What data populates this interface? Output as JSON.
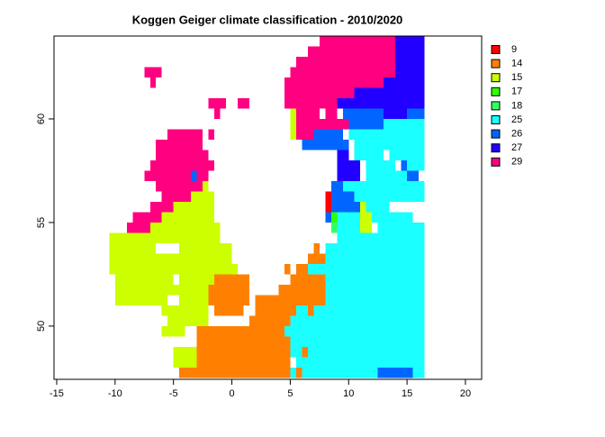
{
  "chart_data": {
    "type": "raster",
    "title": "Koggen Geiger climate classification - 2010/2020",
    "xlim": [
      -15.23,
      21.39
    ],
    "ylim": [
      47.43,
      64.0
    ],
    "xticks": [
      -15,
      -10,
      -5,
      0,
      5,
      10,
      15,
      20
    ],
    "yticks": [
      50,
      55,
      60
    ],
    "cell_size": 0.5,
    "legend_classes": [
      9,
      14,
      15,
      17,
      18,
      25,
      26,
      27,
      29
    ],
    "legend_colors": [
      "#ff0000",
      "#ff8000",
      "#ccff00",
      "#33ff00",
      "#33ff66",
      "#1affff",
      "#0066ff",
      "#2200ff",
      "#ff0080"
    ],
    "cells": [
      [
        63.5,
        7.5,
        14,
        29
      ],
      [
        63.5,
        14,
        16.5,
        27
      ],
      [
        63,
        6.5,
        14,
        29
      ],
      [
        63,
        14,
        16.5,
        27
      ],
      [
        62.5,
        5.5,
        14,
        29
      ],
      [
        62.5,
        14,
        16.5,
        27
      ],
      [
        62,
        -7.5,
        -6,
        29
      ],
      [
        62,
        5,
        14,
        29
      ],
      [
        62,
        14,
        16.5,
        27
      ],
      [
        61.5,
        -7,
        -6.5,
        29
      ],
      [
        61.5,
        4.5,
        13,
        29
      ],
      [
        61.5,
        13,
        16.5,
        27
      ],
      [
        61,
        4.5,
        10.5,
        29
      ],
      [
        61,
        10.5,
        16.5,
        27
      ],
      [
        60.5,
        -2,
        -0.5,
        29
      ],
      [
        60.5,
        0.5,
        1.5,
        29
      ],
      [
        60.5,
        4.5,
        9,
        29
      ],
      [
        60.5,
        9,
        16.5,
        27
      ],
      [
        60,
        -1.5,
        -1,
        29
      ],
      [
        60,
        5,
        5.5,
        15
      ],
      [
        60,
        5.5,
        7.5,
        29
      ],
      [
        60,
        8,
        9,
        29
      ],
      [
        60,
        9.5,
        13,
        26
      ],
      [
        60,
        13,
        15,
        27
      ],
      [
        60,
        15,
        16.5,
        26
      ],
      [
        59.5,
        5,
        5.5,
        15
      ],
      [
        59.5,
        5.5,
        10,
        29
      ],
      [
        59.5,
        10,
        13,
        26
      ],
      [
        59.5,
        13,
        16.5,
        25
      ],
      [
        59,
        -5.5,
        -2.5,
        29
      ],
      [
        59,
        -2,
        -1.5,
        29
      ],
      [
        59,
        5,
        5.5,
        15
      ],
      [
        59,
        5.5,
        7,
        29
      ],
      [
        59,
        7,
        9.5,
        26
      ],
      [
        59,
        10,
        16.5,
        25
      ],
      [
        58.5,
        -6.5,
        -2.5,
        29
      ],
      [
        58.5,
        6,
        10,
        26
      ],
      [
        58.5,
        10.5,
        16.5,
        25
      ],
      [
        58,
        -6.5,
        -2,
        29
      ],
      [
        58,
        9,
        10,
        27
      ],
      [
        58,
        10.5,
        13,
        25
      ],
      [
        58,
        13.5,
        16.5,
        25
      ],
      [
        57.5,
        -7,
        -1.5,
        29
      ],
      [
        57.5,
        9,
        11,
        27
      ],
      [
        57.5,
        11.5,
        14,
        25
      ],
      [
        57.5,
        14.5,
        15,
        26
      ],
      [
        57.5,
        15,
        16.5,
        25
      ],
      [
        57,
        -7.5,
        -3.5,
        29
      ],
      [
        57,
        -3.5,
        -3,
        26
      ],
      [
        57,
        -3,
        -2,
        29
      ],
      [
        57,
        9,
        11,
        27
      ],
      [
        57,
        11.5,
        15,
        25
      ],
      [
        57,
        15,
        16,
        26
      ],
      [
        56.5,
        -6.5,
        -2.5,
        29
      ],
      [
        56.5,
        -2.5,
        -2,
        15
      ],
      [
        56.5,
        8.5,
        9.5,
        26
      ],
      [
        56.5,
        9.5,
        16.5,
        25
      ],
      [
        56,
        -6,
        -3.5,
        29
      ],
      [
        56,
        -3.5,
        -1.5,
        15
      ],
      [
        56,
        8,
        8.5,
        9
      ],
      [
        56,
        8.5,
        10.5,
        26
      ],
      [
        56,
        10.5,
        16.5,
        25
      ],
      [
        55.5,
        -7,
        -5,
        29
      ],
      [
        55.5,
        -5,
        -1.5,
        15
      ],
      [
        55.5,
        8,
        8.5,
        9
      ],
      [
        55.5,
        8.5,
        11,
        26
      ],
      [
        55.5,
        11,
        11.5,
        15
      ],
      [
        55.5,
        11.5,
        13.5,
        25
      ],
      [
        55,
        -8.5,
        -6,
        29
      ],
      [
        55,
        -6,
        -1.5,
        15
      ],
      [
        55,
        8,
        8.5,
        26
      ],
      [
        55,
        8.5,
        9,
        17
      ],
      [
        55,
        9,
        11,
        25
      ],
      [
        55,
        11,
        12,
        15
      ],
      [
        55,
        12,
        15.5,
        25
      ],
      [
        54.5,
        -9,
        -7,
        29
      ],
      [
        54.5,
        -7,
        -1,
        15
      ],
      [
        54.5,
        8.5,
        9,
        18
      ],
      [
        54.5,
        9,
        11,
        25
      ],
      [
        54.5,
        11,
        12,
        15
      ],
      [
        54.5,
        12.5,
        16.5,
        25
      ],
      [
        54,
        -10.5,
        -1,
        15
      ],
      [
        54,
        9,
        16.5,
        25
      ],
      [
        53.5,
        -10.5,
        -6.5,
        15
      ],
      [
        53.5,
        -4.5,
        0,
        15
      ],
      [
        53.5,
        7,
        7.5,
        14
      ],
      [
        53.5,
        8,
        16.5,
        25
      ],
      [
        53,
        -10.5,
        -3,
        15
      ],
      [
        53,
        -3,
        0,
        15
      ],
      [
        53,
        6.5,
        8,
        14
      ],
      [
        53,
        8,
        16.5,
        25
      ],
      [
        52.5,
        -10.5,
        -4.5,
        15
      ],
      [
        52.5,
        -4.5,
        0.5,
        15
      ],
      [
        52.5,
        4.5,
        5,
        14
      ],
      [
        52.5,
        5.5,
        6.5,
        14
      ],
      [
        52.5,
        6.5,
        16.5,
        25
      ],
      [
        52,
        -10,
        -5,
        15
      ],
      [
        52,
        -4.5,
        -1.5,
        15
      ],
      [
        52,
        -1.5,
        1.5,
        14
      ],
      [
        52,
        5,
        8,
        14
      ],
      [
        52,
        8,
        16.5,
        25
      ],
      [
        51.5,
        -10,
        -5.5,
        15
      ],
      [
        51.5,
        -5.5,
        -2,
        15
      ],
      [
        51.5,
        -2,
        1.5,
        14
      ],
      [
        51.5,
        4,
        8,
        14
      ],
      [
        51.5,
        8,
        16.5,
        25
      ],
      [
        51,
        -10,
        -5.5,
        15
      ],
      [
        51,
        -4.5,
        -2,
        15
      ],
      [
        51,
        -2,
        1.5,
        14
      ],
      [
        51,
        2,
        8,
        14
      ],
      [
        51,
        8,
        16.5,
        25
      ],
      [
        50.5,
        -6,
        -2,
        15
      ],
      [
        50.5,
        -1.5,
        1,
        14
      ],
      [
        50.5,
        2,
        5.5,
        14
      ],
      [
        50.5,
        5.5,
        6.5,
        25
      ],
      [
        50.5,
        6.5,
        7,
        14
      ],
      [
        50.5,
        7,
        16.5,
        25
      ],
      [
        50,
        -5.5,
        -2,
        15
      ],
      [
        50,
        1.5,
        5,
        14
      ],
      [
        50,
        5,
        16.5,
        25
      ],
      [
        49.5,
        -6,
        -4,
        15
      ],
      [
        49.5,
        -3,
        4.5,
        14
      ],
      [
        49.5,
        4.5,
        16.5,
        25
      ],
      [
        49,
        -3,
        5,
        14
      ],
      [
        49,
        5,
        16.5,
        25
      ],
      [
        48.5,
        -5,
        -3,
        15
      ],
      [
        48.5,
        -3,
        5,
        14
      ],
      [
        48.5,
        5,
        6,
        25
      ],
      [
        48.5,
        6,
        6.5,
        14
      ],
      [
        48.5,
        6.5,
        16.5,
        25
      ],
      [
        48,
        -5,
        -3,
        15
      ],
      [
        48,
        -3,
        5,
        14
      ],
      [
        48,
        5.5,
        16.5,
        25
      ],
      [
        47.5,
        -4.5,
        5,
        14
      ],
      [
        47.5,
        5,
        5.5,
        25
      ],
      [
        47.5,
        5.5,
        6,
        14
      ],
      [
        47.5,
        6,
        12.5,
        25
      ],
      [
        47.5,
        12.5,
        15.5,
        26
      ],
      [
        47.5,
        15.5,
        16.5,
        25
      ]
    ]
  }
}
